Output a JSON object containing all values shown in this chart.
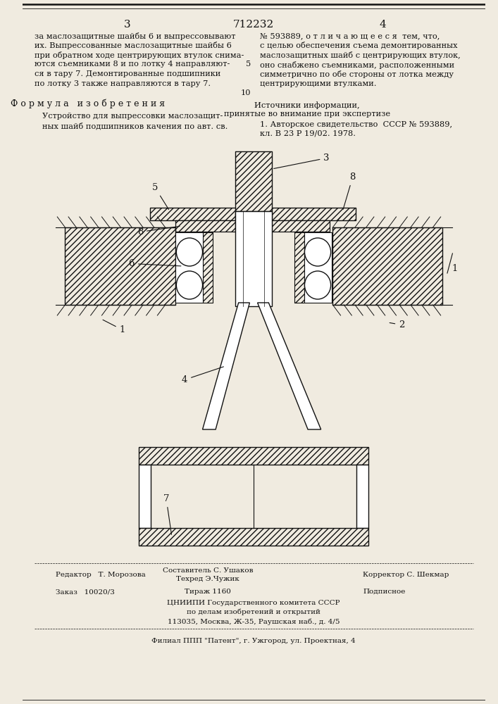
{
  "page_number_left": "3",
  "patent_number": "712232",
  "page_number_right": "4",
  "col_left_text": [
    "за маслозащитные шайбы 6 и выпрессовывают",
    "их. Выпрессованные маслозащитные шайбы 6",
    "при обратном ходе центрирующих втулок снима-",
    "ются съемниками 8 и по лотку 4 направляют-",
    "ся в тару 7. Демонтированные подшипники",
    "по лотку 3 также направляются в тару 7."
  ],
  "formula_title": "Ф о р м у л а   и з о б р е т е н и я",
  "formula_text": [
    "Устройство для выпрессовки маслозащит-",
    "ных шайб подшипников качения по авт. св."
  ],
  "col_right_text": [
    "№ 593889, о т л и ч а ю щ е е с я  тем, что,",
    "с целью обеспечения съема демонтированных",
    "маслозащитных шайб с центрирующих втулок,",
    "оно снабжено съемниками, расположенными",
    "симметрично по обе стороны от лотка между",
    "центрирующими втулками."
  ],
  "sources_title": "Источники информации,",
  "sources_subtitle": "принятые во внимание при экспертизе",
  "source_1": "1. Авторское свидетельство  СССР № 593889,",
  "source_1b": "кл. В 23 Р 19/02. 1978.",
  "editor_line": "Редактор   Т. Морозова",
  "composer_line": "Составитель С. Ушаков",
  "tech_line": "Техред Э.Чужик",
  "corrector_line": "Корректор С. Шекмар",
  "order_line": "Заказ   10020/3",
  "tirazh_line": "Тираж 1160",
  "podpisnoe_line": "Подписное",
  "cniip_line1": "ЦНИИПИ Государственного комитета СССР",
  "cniip_line2": "по делам изобретений и открытий",
  "cniip_line3": "113035, Москва, Ж-35, Раушская наб., д. 4/5",
  "filial_line": "Филиал ППП \"Патент\", г. Ужгород, ул. Проектная, 4",
  "bg_color": "#f0ebe0",
  "text_color": "#111111",
  "line_color": "#111111"
}
